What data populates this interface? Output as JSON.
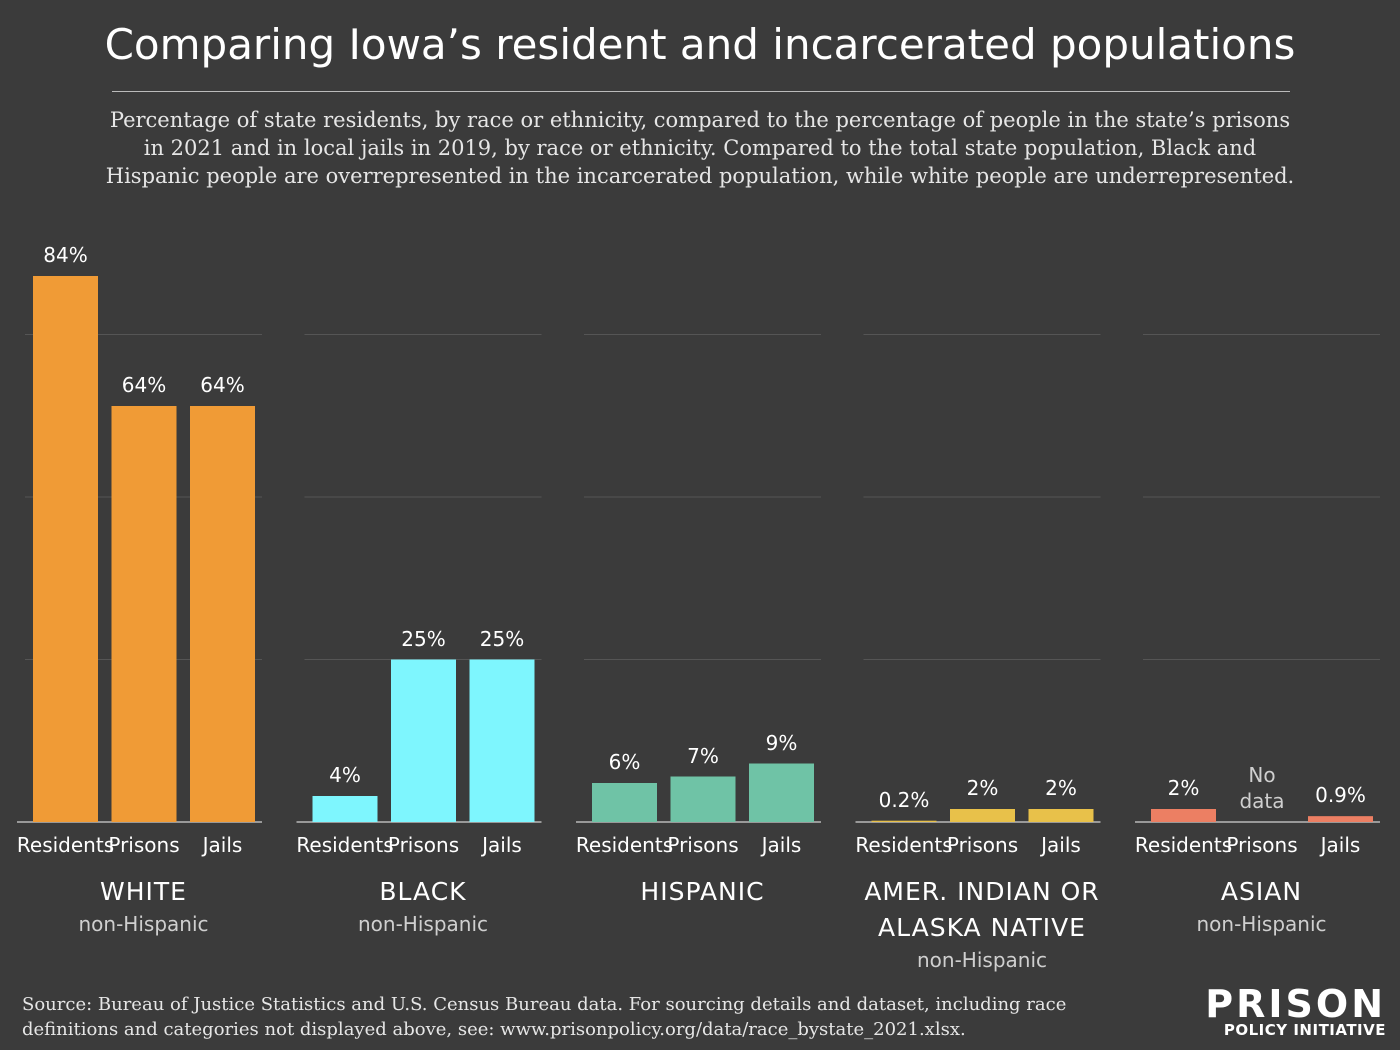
{
  "title": "Comparing Iowa’s resident and incarcerated populations",
  "subtitle": "Percentage of state residents, by race or ethnicity, compared to the percentage of people in the state’s prisons in 2021 and in local jails in 2019, by race or ethnicity. Compared to the total state population, Black and Hispanic people are overrepresented in the incarcerated population, while white people are underrepresented.",
  "source": "Source: Bureau of Justice Statistics and U.S. Census Bureau data. For sourcing details and dataset, including race definitions and categories not displayed above, see: www.prisonpolicy.org/data/race_bystate_2021.xlsx.",
  "logo": {
    "line1": "PRISON",
    "line2": "POLICY INITIATIVE"
  },
  "chart_data": [
    {
      "type": "bar",
      "title": "WHITE",
      "subtitle": "non-Hispanic",
      "categories": [
        "Residents",
        "Prisons",
        "Jails"
      ],
      "values": [
        84,
        64,
        64
      ],
      "value_labels": [
        "84%",
        "64%",
        "64%"
      ],
      "color": "#f09b36",
      "ylim": [
        0,
        100
      ],
      "yticks": [
        25,
        50,
        75
      ],
      "grid": true
    },
    {
      "type": "bar",
      "title": "BLACK",
      "subtitle": "non-Hispanic",
      "categories": [
        "Residents",
        "Prisons",
        "Jails"
      ],
      "values": [
        4,
        25,
        25
      ],
      "value_labels": [
        "4%",
        "25%",
        "25%"
      ],
      "color": "#7ef6fe",
      "ylim": [
        0,
        100
      ],
      "yticks": [
        25,
        50,
        75
      ],
      "grid": true
    },
    {
      "type": "bar",
      "title": "HISPANIC",
      "categories": [
        "Residents",
        "Prisons",
        "Jails"
      ],
      "values": [
        6,
        7,
        9
      ],
      "value_labels": [
        "6%",
        "7%",
        "9%"
      ],
      "color": "#6fc3a6",
      "ylim": [
        0,
        100
      ],
      "yticks": [
        25,
        50,
        75
      ],
      "grid": true
    },
    {
      "type": "bar",
      "title": "AMER. INDIAN OR ALASKA NATIVE",
      "subtitle": "non-Hispanic",
      "categories": [
        "Residents",
        "Prisons",
        "Jails"
      ],
      "values": [
        0.2,
        2,
        2
      ],
      "value_labels": [
        "0.2%",
        "2%",
        "2%"
      ],
      "color": "#e8c14a",
      "ylim": [
        0,
        100
      ],
      "yticks": [
        25,
        50,
        75
      ],
      "grid": true
    },
    {
      "type": "bar",
      "title": "ASIAN",
      "subtitle": "non-Hispanic",
      "categories": [
        "Residents",
        "Prisons",
        "Jails"
      ],
      "values": [
        2,
        null,
        0.9
      ],
      "value_labels": [
        "2%",
        "No data",
        "0.9%"
      ],
      "color": "#ec7f63",
      "ylim": [
        0,
        100
      ],
      "yticks": [
        25,
        50,
        75
      ],
      "grid": true
    }
  ]
}
